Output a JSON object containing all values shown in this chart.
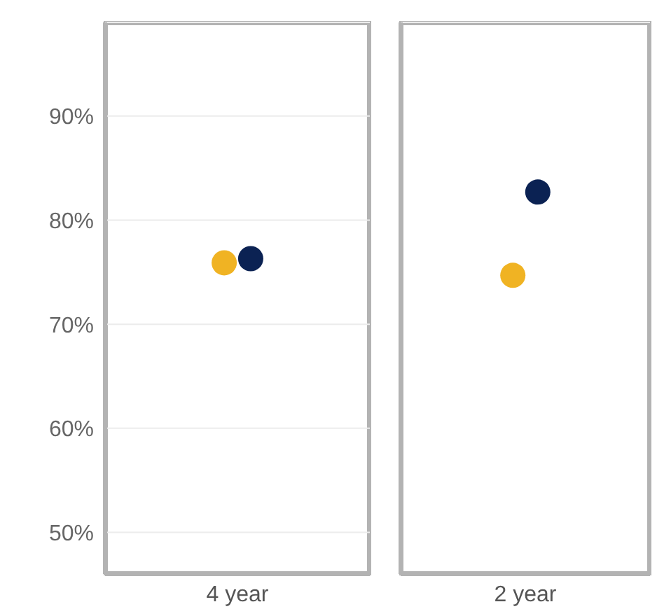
{
  "chart_data": [
    {
      "type": "scatter",
      "categories": [
        "4 year"
      ],
      "ylim": [
        46,
        99
      ],
      "yticks": [
        {
          "value": 50,
          "label": "50%"
        },
        {
          "value": 60,
          "label": "60%"
        },
        {
          "value": 70,
          "label": "70%"
        },
        {
          "value": 80,
          "label": "80%"
        },
        {
          "value": 90,
          "label": "90%"
        }
      ],
      "grid": "y",
      "marker": "circle",
      "series": [
        {
          "color": "#f0b323",
          "values": [
            75.9
          ]
        },
        {
          "color": "#0b2253",
          "values": [
            76.3
          ]
        }
      ]
    },
    {
      "type": "scatter",
      "categories": [
        "2 year"
      ],
      "ylim": [
        46,
        99
      ],
      "yticks": [
        {
          "value": 50,
          "label": null
        },
        {
          "value": 60,
          "label": null
        },
        {
          "value": 70,
          "label": null
        },
        {
          "value": 80,
          "label": null
        },
        {
          "value": 90,
          "label": null
        }
      ],
      "grid": "y",
      "marker": "circle",
      "tick_labels": "x",
      "series": [
        {
          "color": "#f0b323",
          "values": [
            74.7
          ]
        },
        {
          "color": "#0b2253",
          "values": [
            82.7
          ]
        }
      ]
    }
  ]
}
